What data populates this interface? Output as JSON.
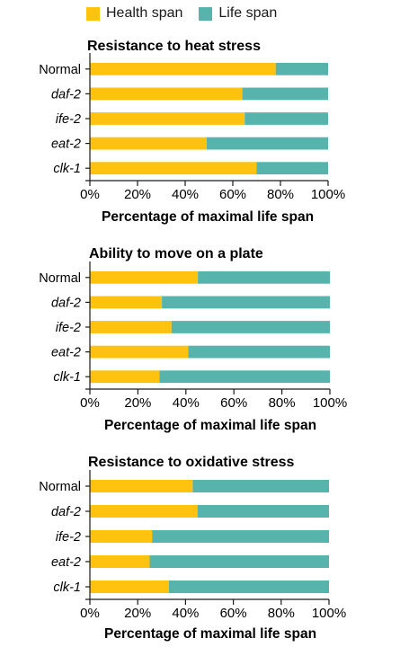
{
  "legend": [
    {
      "label": "Health span",
      "color": "#FFC20E",
      "icon": "health-span-swatch"
    },
    {
      "label": "Life span",
      "color": "#56B4AC",
      "icon": "life-span-swatch"
    }
  ],
  "chart_data": [
    {
      "type": "bar",
      "orientation": "horizontal",
      "stacked": true,
      "title": "Resistance to heat stress",
      "xlabel": "Percentage of maximal life span",
      "xlim": [
        0,
        100
      ],
      "xticks": [
        "0%",
        "20%",
        "40%",
        "60%",
        "80%",
        "100%"
      ],
      "categories": [
        "Normal",
        "daf-2",
        "ife-2",
        "eat-2",
        "clk-1"
      ],
      "series": [
        {
          "name": "Health span",
          "values": [
            78,
            64,
            65,
            49,
            70
          ]
        },
        {
          "name": "Life span",
          "values": [
            22,
            36,
            35,
            51,
            30
          ]
        }
      ]
    },
    {
      "type": "bar",
      "orientation": "horizontal",
      "stacked": true,
      "title": "Ability to move on a plate",
      "xlabel": "Percentage of maximal life span",
      "xlim": [
        0,
        100
      ],
      "xticks": [
        "0%",
        "20%",
        "40%",
        "60%",
        "80%",
        "100%"
      ],
      "categories": [
        "Normal",
        "daf-2",
        "ife-2",
        "eat-2",
        "clk-1"
      ],
      "series": [
        {
          "name": "Health span",
          "values": [
            45,
            30,
            34,
            41,
            29
          ]
        },
        {
          "name": "Life span",
          "values": [
            55,
            70,
            66,
            59,
            71
          ]
        }
      ]
    },
    {
      "type": "bar",
      "orientation": "horizontal",
      "stacked": true,
      "title": "Resistance to oxidative stress",
      "xlabel": "Percentage of maximal life span",
      "xlim": [
        0,
        100
      ],
      "xticks": [
        "0%",
        "20%",
        "40%",
        "60%",
        "80%",
        "100%"
      ],
      "categories": [
        "Normal",
        "daf-2",
        "ife-2",
        "eat-2",
        "clk-1"
      ],
      "series": [
        {
          "name": "Health span",
          "values": [
            43,
            45,
            26,
            25,
            33
          ]
        },
        {
          "name": "Life span",
          "values": [
            57,
            55,
            74,
            75,
            67
          ]
        }
      ]
    }
  ]
}
